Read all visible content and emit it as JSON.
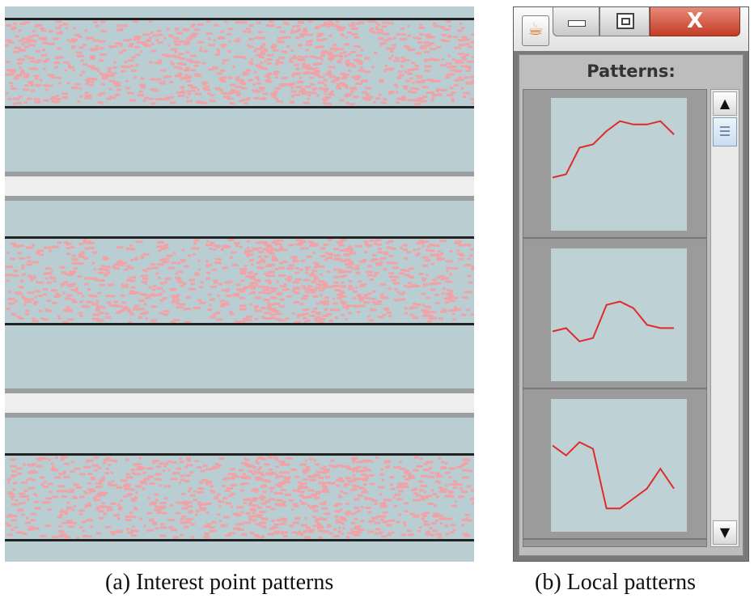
{
  "panel_a": {
    "band_color": "#b9ced3",
    "dot_color": "#f0a3a6",
    "separator_color": "#eeeeee"
  },
  "window": {
    "title_icon": "java-cup-icon",
    "minimize_icon": "minimize-icon",
    "maximize_icon": "restore-icon",
    "close_label": "X",
    "label": "Patterns:",
    "line_color": "#e02a2a",
    "patterns": [
      {
        "values": [
          0.61,
          0.62,
          0.7,
          0.71,
          0.75,
          0.78,
          0.77,
          0.77,
          0.78,
          0.74
        ]
      },
      {
        "values": [
          0.6,
          0.61,
          0.57,
          0.58,
          0.68,
          0.69,
          0.67,
          0.62,
          0.61,
          0.61
        ]
      },
      {
        "values": [
          0.71,
          0.68,
          0.72,
          0.7,
          0.52,
          0.52,
          0.55,
          0.58,
          0.64,
          0.58
        ]
      }
    ],
    "scroll_up_label": "▲",
    "scroll_down_label": "▼"
  },
  "captions": {
    "a": "(a)  Interest point patterns",
    "b": "(b)  Local patterns"
  }
}
